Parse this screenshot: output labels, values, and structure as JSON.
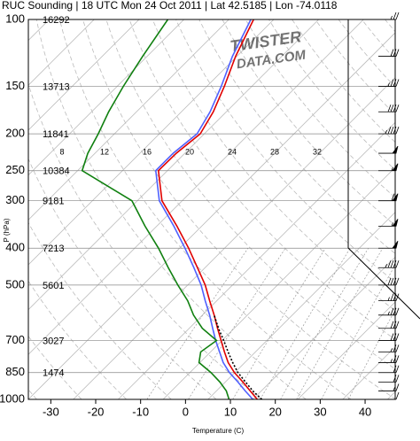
{
  "chart_data": {
    "type": "skewt",
    "title": "RUC Sounding | 18 UTC Mon 24 Oct 2011 | Lat 42.5185 | Lon -74.0118",
    "watermark": [
      "TWISTER",
      "DATA.COM"
    ],
    "xlabel": "Temperature (C)",
    "ylabel": "P (hPa)",
    "log_y": true,
    "xlim": [
      -35,
      46.7
    ],
    "ylim": [
      1000,
      100
    ],
    "xticks": [
      -30,
      -20,
      -10,
      0,
      10,
      20,
      30,
      40
    ],
    "yticks": [
      100,
      150,
      200,
      250,
      300,
      400,
      500,
      700,
      850,
      1000
    ],
    "grid": true,
    "heights": {
      "pressures": [
        100,
        150,
        200,
        250,
        300,
        400,
        500,
        700,
        850
      ],
      "labels": [
        "16292",
        "13713",
        "11841",
        "10384",
        "9181",
        "7213",
        "5601",
        "3027",
        "1474"
      ]
    },
    "line_labels": [
      "8",
      "12",
      "16",
      "20",
      "24",
      "28",
      "32"
    ],
    "pressure": [
      1000,
      950,
      900,
      850,
      800,
      750,
      700,
      650,
      600,
      550,
      500,
      450,
      400,
      350,
      300,
      250,
      225,
      200,
      175,
      150,
      125,
      100
    ],
    "series": [
      {
        "name": "Temperature",
        "color": "#e00000",
        "style": "solid",
        "values": [
          16.0,
          12.5,
          8.9,
          4.9,
          1.3,
          -1.9,
          -5.2,
          -8.7,
          -12.4,
          -16.6,
          -21.1,
          -26.7,
          -33.0,
          -40.5,
          -49.5,
          -57.0,
          -56.9,
          -55.9,
          -57.9,
          -61.1,
          -65.3,
          -69.5
        ]
      },
      {
        "name": "Virtual Temperature",
        "color": "#5060ff",
        "style": "solid",
        "values": [
          15.0,
          11.4,
          7.8,
          3.8,
          0.2,
          -3.0,
          -6.4,
          -9.8,
          -13.4,
          -17.6,
          -22.0,
          -27.5,
          -33.8,
          -41.2,
          -50.1,
          -57.6,
          -57.6,
          -56.6,
          -58.6,
          -61.8,
          -66.0,
          -70.1
        ]
      },
      {
        "name": "Dewpoint",
        "color": "#108010",
        "style": "solid",
        "values": [
          9.7,
          7.2,
          3.8,
          -0.3,
          -5.2,
          -7.2,
          -6.2,
          -12.1,
          -17.0,
          -21.5,
          -27.2,
          -33.2,
          -39.7,
          -47.6,
          -56.2,
          -74.0,
          -76.6,
          -78.6,
          -81.2,
          -83.6,
          -86.0,
          -88.6
        ]
      },
      {
        "name": "Parcel",
        "color": "#000000",
        "style": "dotted",
        "values": [
          17.0,
          13.1,
          9.5,
          5.7,
          2.3,
          -1.1,
          -4.6,
          -8.5,
          -12.4,
          null,
          null,
          null,
          null,
          null,
          null,
          null,
          null,
          null,
          null,
          null,
          null,
          null
        ]
      }
    ],
    "wind_speeds": [
      10,
      15,
      20,
      20,
      25,
      25,
      30,
      30,
      35,
      35,
      40,
      45,
      50,
      55,
      60,
      55,
      50,
      45,
      40,
      35,
      30,
      25
    ]
  }
}
